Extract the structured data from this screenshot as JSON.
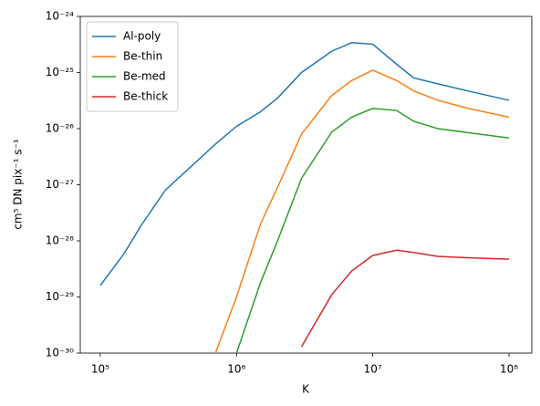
{
  "chart_data": {
    "type": "line",
    "xlabel": "K",
    "ylabel": "cm⁵ DN pix⁻¹ s⁻¹",
    "xscale": "log",
    "yscale": "log",
    "x": [
      100000,
      150000,
      200000,
      300000,
      500000,
      700000,
      1000000,
      1500000,
      2000000,
      3000000,
      5000000,
      7000000,
      10000000,
      15000000,
      20000000,
      30000000,
      50000000,
      100000000
    ],
    "series": [
      {
        "name": "Al-poly",
        "color": "#1f77b4",
        "values": [
          1.6e-29,
          6e-29,
          1.9e-28,
          8e-28,
          2.5e-27,
          5.3e-27,
          1.1e-26,
          2e-26,
          3.5e-26,
          1e-25,
          2.4e-25,
          3.4e-25,
          3.2e-25,
          1.4e-25,
          8e-26,
          6.3e-26,
          4.7e-26,
          3.2e-26
        ]
      },
      {
        "name": "Be-thin",
        "color": "#ff7f0e",
        "values": [
          null,
          null,
          null,
          null,
          null,
          1e-30,
          1e-29,
          2e-28,
          9e-28,
          8e-27,
          3.9e-26,
          7.2e-26,
          1.1e-25,
          7.2e-26,
          4.7e-26,
          3.2e-26,
          2.3e-26,
          1.6e-26
        ]
      },
      {
        "name": "Be-med",
        "color": "#2ca02c",
        "values": [
          null,
          null,
          null,
          null,
          null,
          null,
          1e-30,
          1.8e-29,
          1e-28,
          1.3e-27,
          8.7e-27,
          1.6e-26,
          2.3e-26,
          2.1e-26,
          1.35e-26,
          1e-26,
          8.5e-27,
          6.8e-27
        ]
      },
      {
        "name": "Be-thick",
        "color": "#d62728",
        "values": [
          null,
          null,
          null,
          null,
          null,
          null,
          null,
          null,
          null,
          1.3e-30,
          1.1e-29,
          2.9e-29,
          5.5e-29,
          6.8e-29,
          6.2e-29,
          5.3e-29,
          5e-29,
          4.7e-29
        ]
      }
    ],
    "xlim": [
      71300,
      147000000
    ],
    "ylim": [
      1e-30,
      1e-24
    ],
    "xticks": [
      {
        "value": 100000,
        "label": "10⁵"
      },
      {
        "value": 1000000,
        "label": "10⁶"
      },
      {
        "value": 10000000,
        "label": "10⁷"
      },
      {
        "value": 100000000,
        "label": "10⁸"
      }
    ],
    "yticks": [
      {
        "value": 1e-30,
        "label": "10⁻³⁰"
      },
      {
        "value": 1e-29,
        "label": "10⁻²⁹"
      },
      {
        "value": 1e-28,
        "label": "10⁻²⁸"
      },
      {
        "value": 1e-27,
        "label": "10⁻²⁷"
      },
      {
        "value": 1e-26,
        "label": "10⁻²⁶"
      },
      {
        "value": 1e-25,
        "label": "10⁻²⁵"
      },
      {
        "value": 1e-24,
        "label": "10⁻²⁴"
      }
    ],
    "grid": false,
    "legend": "upper left"
  }
}
